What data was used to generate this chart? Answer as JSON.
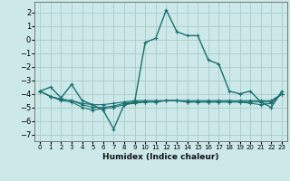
{
  "title": "",
  "xlabel": "Humidex (Indice chaleur)",
  "ylabel": "",
  "xlim": [
    -0.5,
    23.5
  ],
  "ylim": [
    -7.5,
    2.8
  ],
  "yticks": [
    -7,
    -6,
    -5,
    -4,
    -3,
    -2,
    -1,
    0,
    1,
    2
  ],
  "xticks": [
    0,
    1,
    2,
    3,
    4,
    5,
    6,
    7,
    8,
    9,
    10,
    11,
    12,
    13,
    14,
    15,
    16,
    17,
    18,
    19,
    20,
    21,
    22,
    23
  ],
  "background_color": "#cce8e8",
  "grid_color": "#aacccc",
  "line_color": "#1a7070",
  "series1": [
    [
      0,
      -3.8
    ],
    [
      1,
      -3.5
    ],
    [
      2,
      -4.3
    ],
    [
      3,
      -3.3
    ],
    [
      4,
      -4.5
    ],
    [
      5,
      -4.8
    ],
    [
      6,
      -5.2
    ],
    [
      7,
      -6.6
    ],
    [
      8,
      -4.8
    ],
    [
      9,
      -4.6
    ],
    [
      10,
      -0.2
    ],
    [
      11,
      0.1
    ],
    [
      12,
      2.2
    ],
    [
      13,
      0.6
    ],
    [
      14,
      0.3
    ],
    [
      15,
      0.3
    ],
    [
      16,
      -1.5
    ],
    [
      17,
      -1.8
    ],
    [
      18,
      -3.8
    ],
    [
      19,
      -4.0
    ],
    [
      20,
      -3.8
    ],
    [
      21,
      -4.6
    ],
    [
      22,
      -5.0
    ],
    [
      23,
      -3.8
    ]
  ],
  "series2": [
    [
      0,
      -3.8
    ],
    [
      1,
      -4.2
    ],
    [
      2,
      -4.4
    ],
    [
      3,
      -4.5
    ],
    [
      4,
      -4.7
    ],
    [
      5,
      -4.8
    ],
    [
      6,
      -4.8
    ],
    [
      7,
      -4.7
    ],
    [
      8,
      -4.6
    ],
    [
      9,
      -4.5
    ],
    [
      10,
      -4.5
    ],
    [
      11,
      -4.5
    ],
    [
      12,
      -4.5
    ],
    [
      13,
      -4.5
    ],
    [
      14,
      -4.5
    ],
    [
      15,
      -4.5
    ],
    [
      16,
      -4.5
    ],
    [
      17,
      -4.5
    ],
    [
      18,
      -4.5
    ],
    [
      19,
      -4.5
    ],
    [
      20,
      -4.5
    ],
    [
      21,
      -4.5
    ],
    [
      22,
      -4.5
    ],
    [
      23,
      -4.0
    ]
  ],
  "series3": [
    [
      0,
      -3.8
    ],
    [
      1,
      -4.2
    ],
    [
      2,
      -4.4
    ],
    [
      3,
      -4.5
    ],
    [
      4,
      -4.8
    ],
    [
      5,
      -5.0
    ],
    [
      6,
      -5.0
    ],
    [
      7,
      -4.9
    ],
    [
      8,
      -4.7
    ],
    [
      9,
      -4.6
    ],
    [
      10,
      -4.6
    ],
    [
      11,
      -4.6
    ],
    [
      12,
      -4.5
    ],
    [
      13,
      -4.5
    ],
    [
      14,
      -4.6
    ],
    [
      15,
      -4.6
    ],
    [
      16,
      -4.6
    ],
    [
      17,
      -4.6
    ],
    [
      18,
      -4.6
    ],
    [
      19,
      -4.6
    ],
    [
      20,
      -4.6
    ],
    [
      21,
      -4.6
    ],
    [
      22,
      -4.6
    ],
    [
      23,
      -4.0
    ]
  ],
  "series4": [
    [
      0,
      -3.8
    ],
    [
      1,
      -4.2
    ],
    [
      2,
      -4.5
    ],
    [
      3,
      -4.6
    ],
    [
      4,
      -5.0
    ],
    [
      5,
      -5.2
    ],
    [
      6,
      -5.1
    ],
    [
      7,
      -5.0
    ],
    [
      8,
      -4.8
    ],
    [
      9,
      -4.7
    ],
    [
      10,
      -4.6
    ],
    [
      11,
      -4.6
    ],
    [
      12,
      -4.5
    ],
    [
      13,
      -4.5
    ],
    [
      14,
      -4.6
    ],
    [
      15,
      -4.6
    ],
    [
      16,
      -4.6
    ],
    [
      17,
      -4.6
    ],
    [
      18,
      -4.6
    ],
    [
      19,
      -4.6
    ],
    [
      20,
      -4.7
    ],
    [
      21,
      -4.8
    ],
    [
      22,
      -4.7
    ],
    [
      23,
      -4.0
    ]
  ]
}
